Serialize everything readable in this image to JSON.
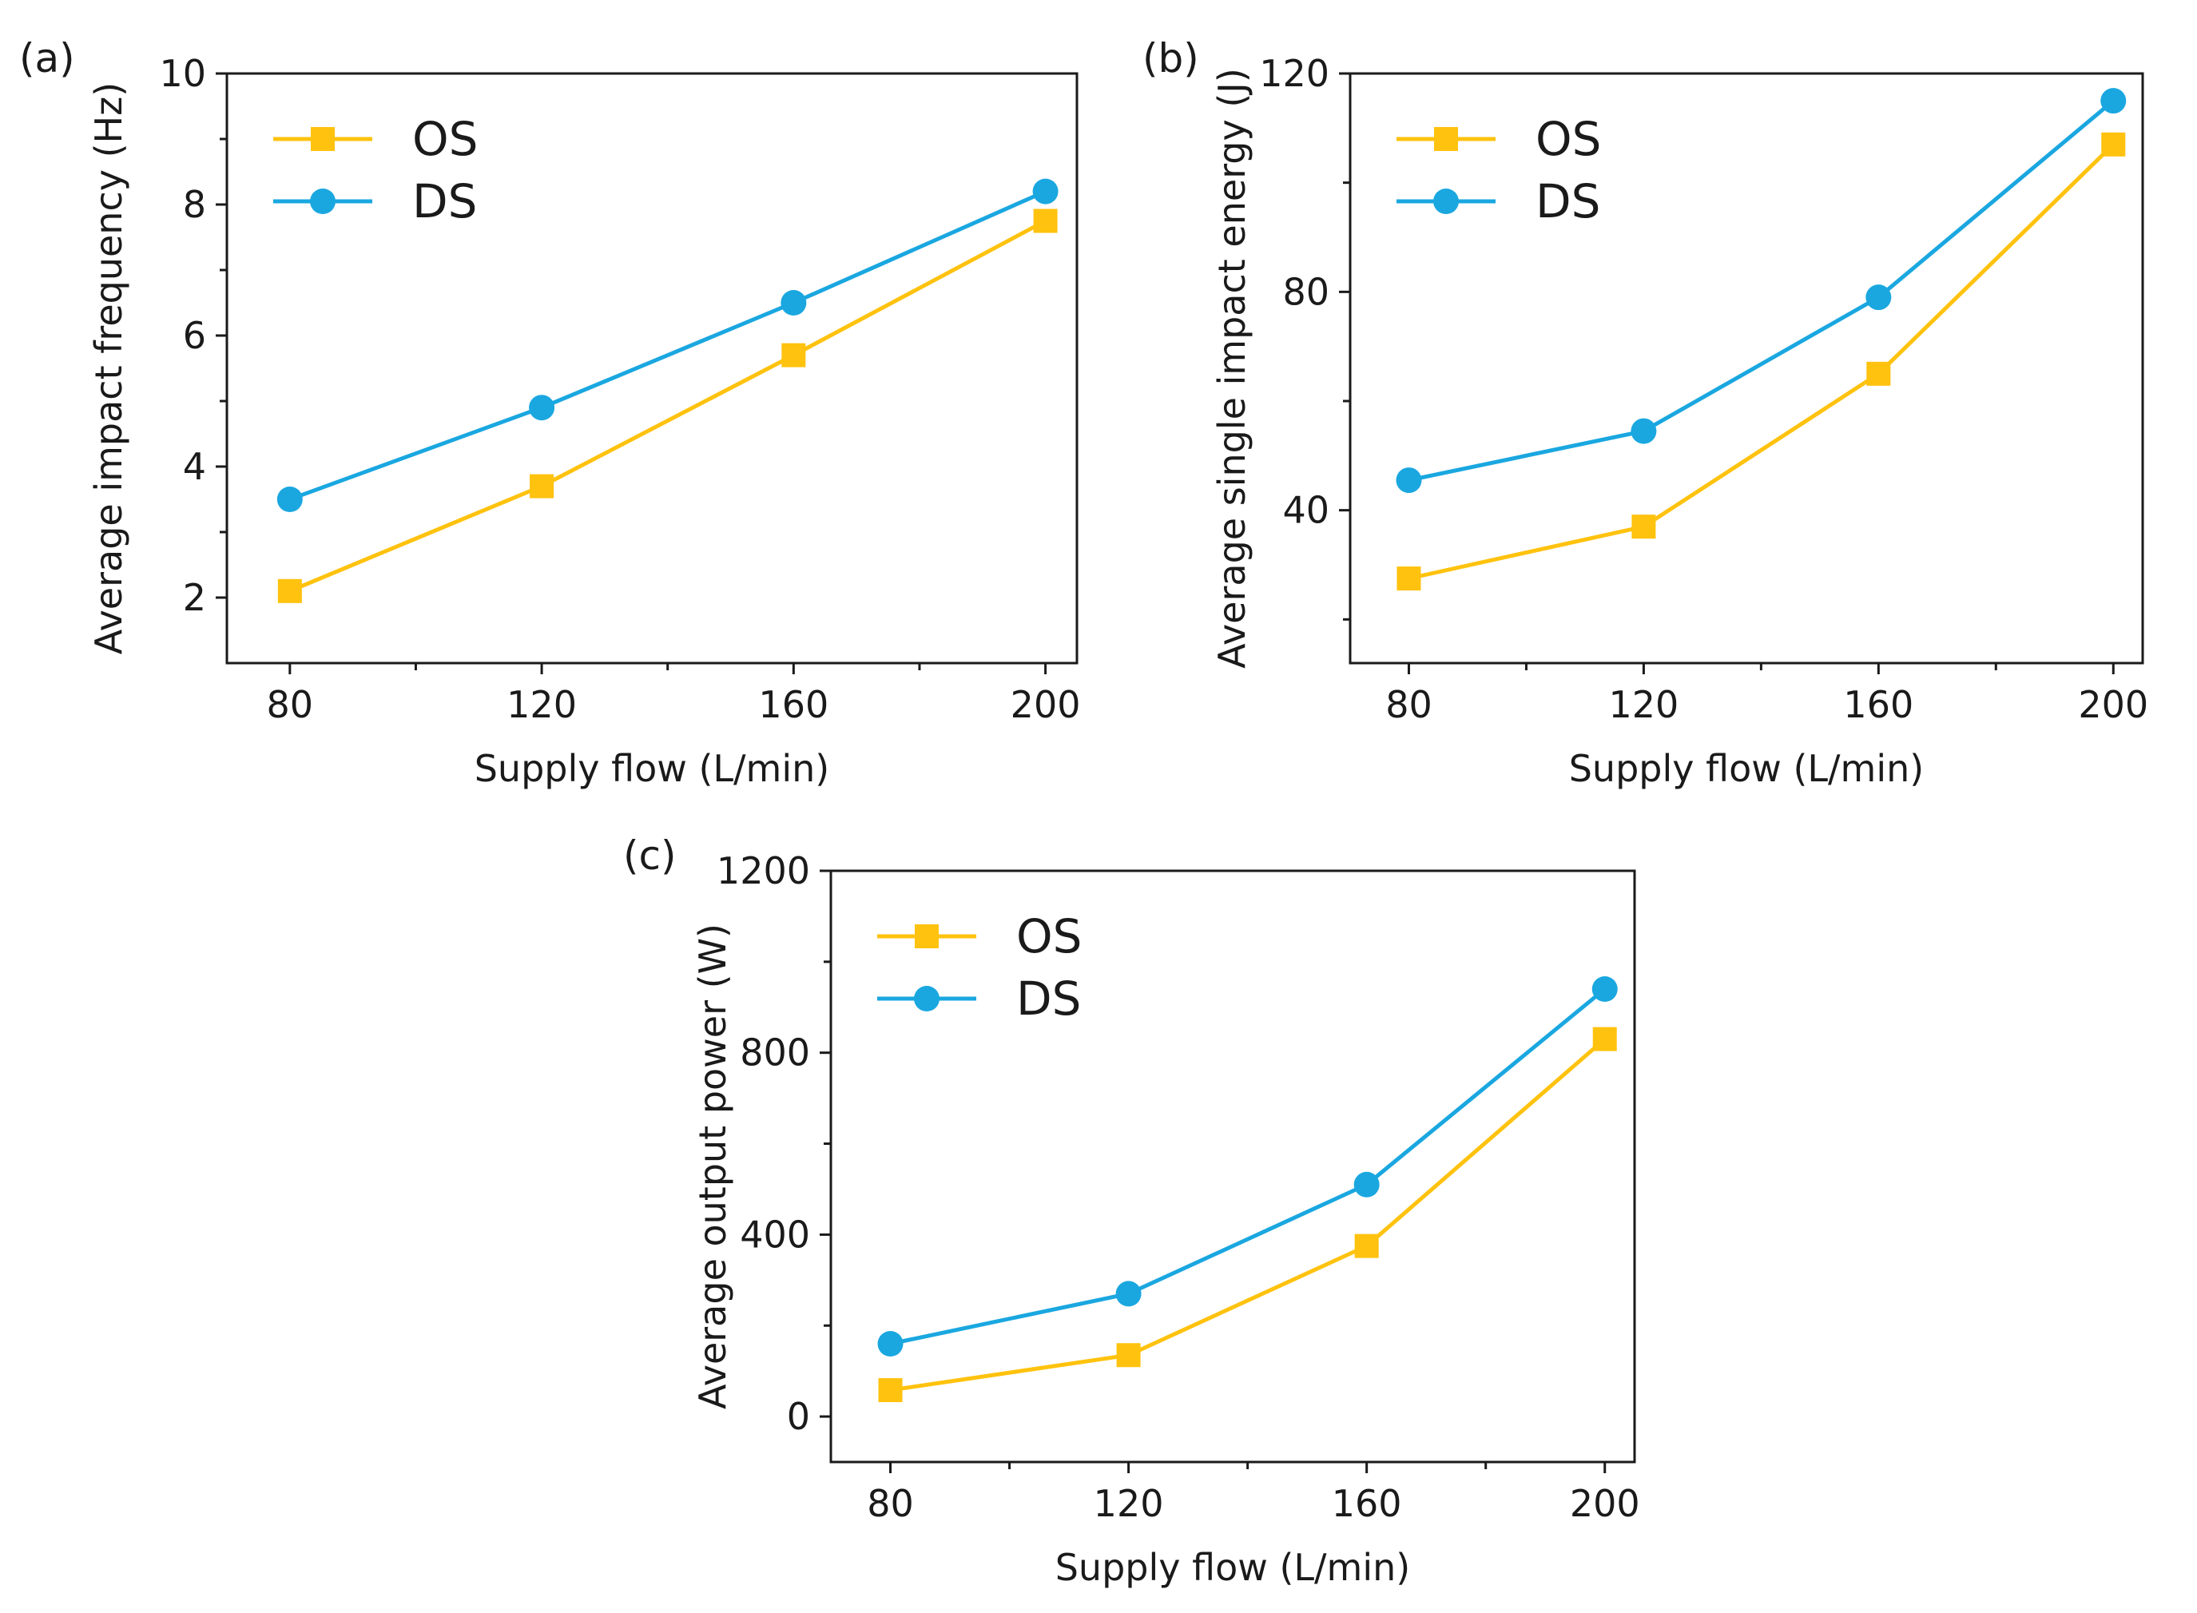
{
  "colors": {
    "OS": "#ffc20e",
    "DS": "#1aa7e0",
    "axis": "#1a1a1a",
    "background": "#ffffff"
  },
  "chart_data": [
    {
      "panel_label": "(a)",
      "type": "line",
      "xlabel": "Supply flow (L/min)",
      "ylabel": "Average impact frequency (Hz)",
      "x": [
        80,
        120,
        160,
        200
      ],
      "xticks": [
        "80",
        "120",
        "160",
        "200"
      ],
      "xlim": [
        70,
        205
      ],
      "ylim": [
        1,
        10
      ],
      "yticks": [
        2,
        4,
        6,
        8,
        10
      ],
      "legend_position": "top-left",
      "series": [
        {
          "name": "OS",
          "marker": "square",
          "color": "#ffc20e",
          "values": [
            2.1,
            3.7,
            5.7,
            7.75
          ]
        },
        {
          "name": "DS",
          "marker": "circle",
          "color": "#1aa7e0",
          "values": [
            3.5,
            4.9,
            6.5,
            8.2
          ]
        }
      ]
    },
    {
      "panel_label": "(b)",
      "type": "line",
      "xlabel": "Supply flow (L/min)",
      "ylabel": "Average single impact energy (J)",
      "x": [
        80,
        120,
        160,
        200
      ],
      "xticks": [
        "80",
        "120",
        "160",
        "200"
      ],
      "xlim": [
        70,
        205
      ],
      "ylim": [
        12,
        120
      ],
      "yticks": [
        40,
        80,
        120
      ],
      "legend_position": "top-left",
      "series": [
        {
          "name": "OS",
          "marker": "square",
          "color": "#ffc20e",
          "values": [
            27.5,
            37,
            65,
            107
          ]
        },
        {
          "name": "DS",
          "marker": "circle",
          "color": "#1aa7e0",
          "values": [
            45.5,
            54.5,
            79,
            115
          ]
        }
      ]
    },
    {
      "panel_label": "(c)",
      "type": "line",
      "xlabel": "Supply flow (L/min)",
      "ylabel": "Average output power (W)",
      "x": [
        80,
        120,
        160,
        200
      ],
      "xticks": [
        "80",
        "120",
        "160",
        "200"
      ],
      "xlim": [
        70,
        205
      ],
      "ylim": [
        -100,
        1200
      ],
      "yticks": [
        0,
        400,
        800,
        1200
      ],
      "legend_position": "top-left",
      "series": [
        {
          "name": "OS",
          "marker": "square",
          "color": "#ffc20e",
          "values": [
            58,
            135,
            375,
            830
          ]
        },
        {
          "name": "DS",
          "marker": "circle",
          "color": "#1aa7e0",
          "values": [
            160,
            270,
            510,
            940
          ]
        }
      ]
    }
  ]
}
